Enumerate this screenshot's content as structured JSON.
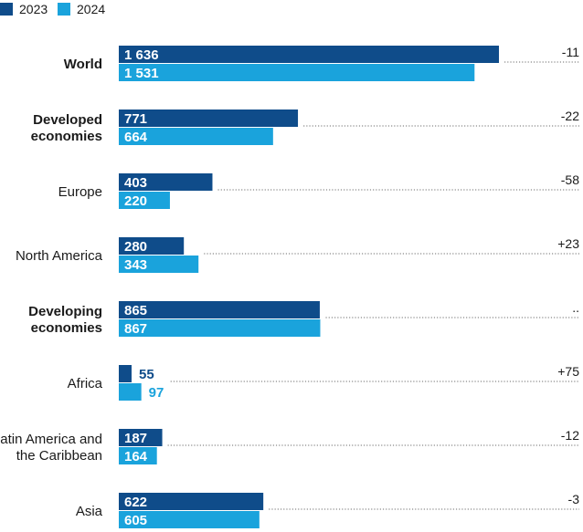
{
  "chart_data": {
    "type": "bar",
    "orientation": "horizontal",
    "legend": {
      "position": "top-left",
      "entries": [
        "2023",
        "2024"
      ]
    },
    "colors": {
      "2023": "#0f4c8a",
      "2024": "#1aa3dc"
    },
    "categories": [
      {
        "label": [
          "World"
        ],
        "bold": true,
        "values": [
          1636,
          1531
        ],
        "value_labels": [
          "1 636",
          "1 531"
        ],
        "change": "-11"
      },
      {
        "label": [
          "Developed",
          "economies"
        ],
        "bold": true,
        "values": [
          771,
          664
        ],
        "value_labels": [
          "771",
          "664"
        ],
        "change": "-22"
      },
      {
        "label": [
          "Europe"
        ],
        "bold": false,
        "values": [
          403,
          220
        ],
        "value_labels": [
          "403",
          "220"
        ],
        "change": "-58"
      },
      {
        "label": [
          "North America"
        ],
        "bold": false,
        "values": [
          280,
          343
        ],
        "value_labels": [
          "280",
          "343"
        ],
        "change": "+23"
      },
      {
        "label": [
          "Developing",
          "economies"
        ],
        "bold": true,
        "values": [
          865,
          867
        ],
        "value_labels": [
          "865",
          "867"
        ],
        "change": ".."
      },
      {
        "label": [
          "Africa"
        ],
        "bold": false,
        "values": [
          55,
          97
        ],
        "value_labels": [
          "55",
          "97"
        ],
        "change": "+75"
      },
      {
        "label": [
          "Latin America and",
          "the Caribbean"
        ],
        "bold": false,
        "values": [
          187,
          164
        ],
        "value_labels": [
          "187",
          "164"
        ],
        "change": "-12"
      },
      {
        "label": [
          "Asia"
        ],
        "bold": false,
        "values": [
          622,
          605
        ],
        "value_labels": [
          "622",
          "605"
        ],
        "change": "-3"
      }
    ],
    "series": [
      {
        "name": "2023"
      },
      {
        "name": "2024"
      }
    ],
    "xlim": [
      0,
      1636
    ]
  }
}
